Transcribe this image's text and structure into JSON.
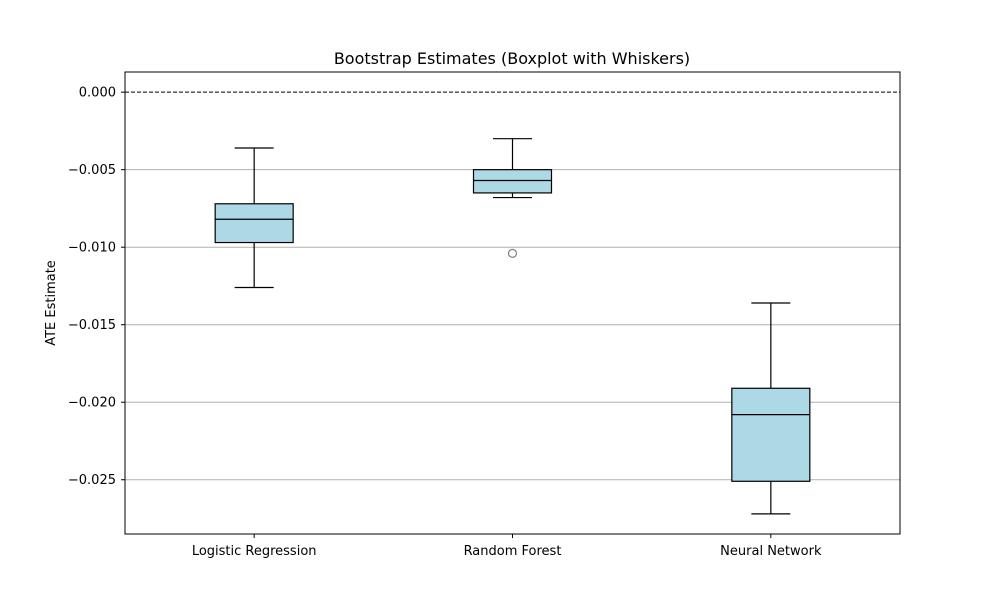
{
  "chart_data": {
    "type": "boxplot",
    "title": "Bootstrap Estimates (Boxplot with Whiskers)",
    "xlabel": "",
    "ylabel": "ATE Estimate",
    "categories": [
      "Logistic Regression",
      "Random Forest",
      "Neural Network"
    ],
    "boxes": [
      {
        "whisker_low": -0.0126,
        "q1": -0.0097,
        "median": -0.0082,
        "q3": -0.0072,
        "whisker_high": -0.0036,
        "outliers": []
      },
      {
        "whisker_low": -0.0068,
        "q1": -0.0065,
        "median": -0.0057,
        "q3": -0.005,
        "whisker_high": -0.003,
        "outliers": [
          -0.0104
        ]
      },
      {
        "whisker_low": -0.0272,
        "q1": -0.0251,
        "median": -0.0208,
        "q3": -0.0191,
        "whisker_high": -0.0136,
        "outliers": []
      }
    ],
    "ylim": [
      -0.0285,
      0.0013
    ],
    "yticks": [
      0.0,
      -0.005,
      -0.01,
      -0.015,
      -0.02,
      -0.025
    ],
    "ytick_labels": [
      "0.000",
      "−0.005",
      "−0.010",
      "−0.015",
      "−0.020",
      "−0.025"
    ],
    "reference_line": 0.0,
    "grid": "y",
    "box_color": "#add8e6",
    "edge_color": "#000000",
    "grid_color": "#b0b0b0",
    "outlier_color": "#808080"
  }
}
